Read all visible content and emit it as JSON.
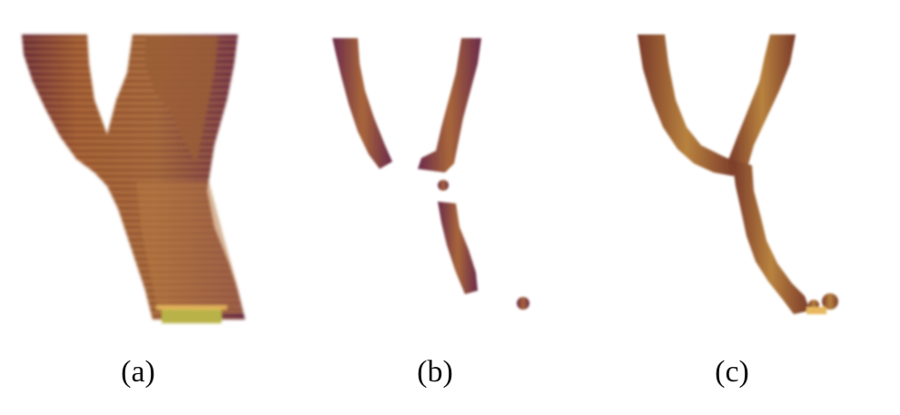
{
  "figure": {
    "panels": [
      {
        "id": "a",
        "label": "(a)"
      },
      {
        "id": "b",
        "label": "(b)"
      },
      {
        "id": "c",
        "label": "(c)"
      }
    ]
  },
  "colors": {
    "vessel_dark": "#7a3a1c",
    "vessel_mid": "#a5633a",
    "vessel_light": "#c98f52",
    "vessel_highlight": "#e0b060",
    "vessel_edge": "#6a2a5a",
    "cap_fill": "#b9b24a"
  }
}
